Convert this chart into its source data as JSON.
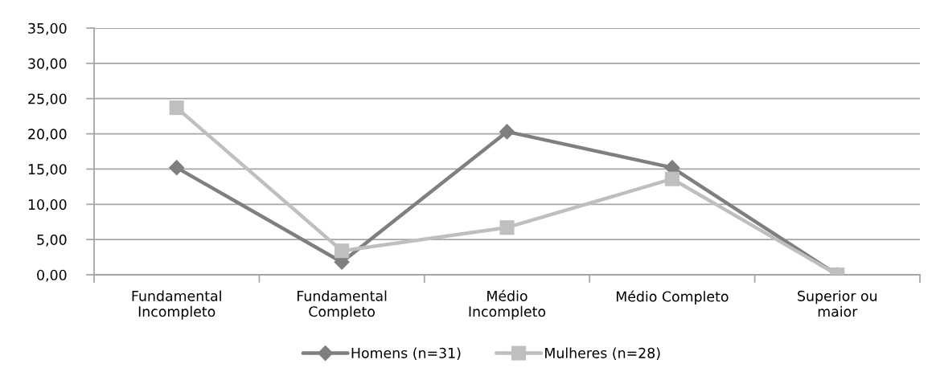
{
  "chart_data": {
    "type": "line",
    "categories": [
      "Fundamental\nIncompleto",
      "Fundamental\nCompleto",
      "Médio\nIncompleto",
      "Médio Completo",
      "Superior ou\nmaior"
    ],
    "series": [
      {
        "name": "Homens (n=31)",
        "color": "#7f7f7f",
        "marker": "diamond",
        "values": [
          15.2,
          1.8,
          20.3,
          15.2,
          0
        ]
      },
      {
        "name": "Mulheres (n=28)",
        "color": "#bfbfbf",
        "marker": "square",
        "values": [
          23.7,
          3.4,
          6.7,
          13.6,
          0
        ]
      }
    ],
    "ylim": [
      0,
      35
    ],
    "yticks": [
      {
        "value": 0,
        "label": "0,00"
      },
      {
        "value": 5,
        "label": "5,00"
      },
      {
        "value": 10,
        "label": "10,00"
      },
      {
        "value": 15,
        "label": "15,00"
      },
      {
        "value": 20,
        "label": "20,00"
      },
      {
        "value": 25,
        "label": "25,00"
      },
      {
        "value": 30,
        "label": "30,00"
      },
      {
        "value": 35,
        "label": "35,00"
      }
    ],
    "grid": "y",
    "legend": "bottom",
    "line_style": "solid"
  }
}
